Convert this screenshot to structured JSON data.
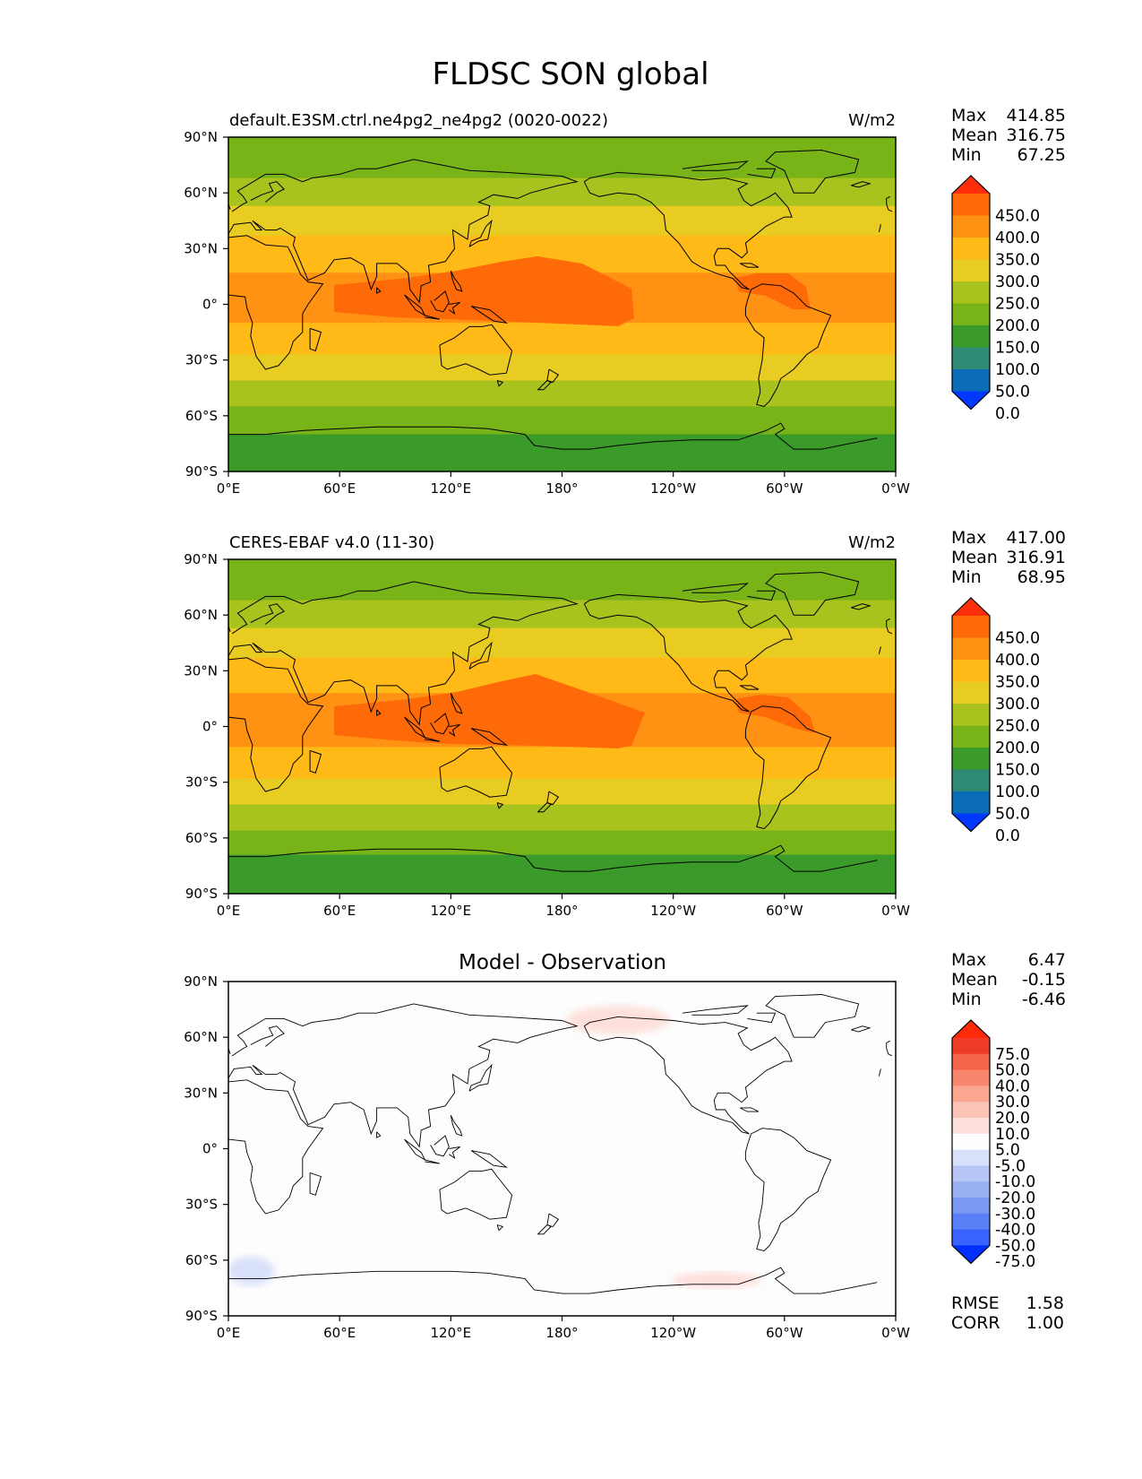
{
  "figure": {
    "title": "FLDSC SON global"
  },
  "colors": {
    "main_levels": [
      "#0038ff",
      "#0a6bb6",
      "#2e8a72",
      "#3a9b2a",
      "#78b418",
      "#a8c21e",
      "#e8cc22",
      "#ffba18",
      "#ff9212",
      "#ff6a08",
      "#ff2e0a"
    ],
    "diff_levels": [
      "#0030ff",
      "#3a62ff",
      "#5a80f8",
      "#7a98f2",
      "#98aff0",
      "#b8c6f5",
      "#d8e0fa",
      "#fdfdfd",
      "#fde0dc",
      "#fcc4b6",
      "#fba690",
      "#f8866c",
      "#f46448",
      "#ef3c28",
      "#ff2a08"
    ],
    "land_outline": "#000000"
  },
  "axes": {
    "lat_ticks": [
      "90°N",
      "60°N",
      "30°N",
      "0°",
      "30°S",
      "60°S",
      "90°S"
    ],
    "lon_ticks": [
      "0°E",
      "60°E",
      "120°E",
      "180°",
      "120°W",
      "60°W",
      "0°W"
    ]
  },
  "chart_data": [
    {
      "type": "heatmap",
      "title_left": "default.E3SM.ctrl.ne4pg2_ne4pg2 (0020-0022)",
      "units": "W/m2",
      "stats": {
        "max_label": "Max",
        "mean_label": "Mean",
        "min_label": "Min",
        "max": "414.85",
        "mean": "316.75",
        "min": "67.25"
      },
      "colorbar_levels": [
        "450.0",
        "400.0",
        "350.0",
        "300.0",
        "250.0",
        "200.0",
        "150.0",
        "100.0",
        "50.0",
        "0.0"
      ],
      "zonal_profile": {
        "lat": [
          90,
          80,
          70,
          60,
          50,
          40,
          30,
          20,
          10,
          0,
          -10,
          -20,
          -30,
          -40,
          -50,
          -60,
          -70,
          -80,
          -90
        ],
        "value": [
          170,
          175,
          195,
          225,
          260,
          290,
          320,
          345,
          360,
          365,
          350,
          325,
          290,
          255,
          220,
          180,
          150,
          120,
          110
        ]
      },
      "warm_pool_value": 400,
      "lon_ticks_deg": [
        0,
        60,
        120,
        180,
        240,
        300,
        360
      ],
      "lat_ticks_deg": [
        90,
        60,
        30,
        0,
        -30,
        -60,
        -90
      ]
    },
    {
      "type": "heatmap",
      "title_left": "CERES-EBAF v4.0 (11-30)",
      "units": "W/m2",
      "stats": {
        "max_label": "Max",
        "mean_label": "Mean",
        "min_label": "Min",
        "max": "417.00",
        "mean": "316.91",
        "min": "68.95"
      },
      "colorbar_levels": [
        "450.0",
        "400.0",
        "350.0",
        "300.0",
        "250.0",
        "200.0",
        "150.0",
        "100.0",
        "50.0",
        "0.0"
      ],
      "zonal_profile": {
        "lat": [
          90,
          80,
          70,
          60,
          50,
          40,
          30,
          20,
          10,
          0,
          -10,
          -20,
          -30,
          -40,
          -50,
          -60,
          -70,
          -80,
          -90
        ],
        "value": [
          170,
          175,
          195,
          225,
          262,
          292,
          322,
          347,
          362,
          366,
          352,
          326,
          292,
          256,
          222,
          182,
          148,
          118,
          110
        ]
      },
      "warm_pool_value": 402,
      "lon_ticks_deg": [
        0,
        60,
        120,
        180,
        240,
        300,
        360
      ],
      "lat_ticks_deg": [
        90,
        60,
        30,
        0,
        -30,
        -60,
        -90
      ]
    },
    {
      "type": "heatmap",
      "title_center": "Model - Observation",
      "stats": {
        "max_label": "Max",
        "mean_label": "Mean",
        "min_label": "Min",
        "max": "6.47",
        "mean": "-0.15",
        "min": "-6.46"
      },
      "colorbar_levels": [
        "75.0",
        "50.0",
        "40.0",
        "30.0",
        "20.0",
        "10.0",
        "5.0",
        "-5.0",
        "-10.0",
        "-20.0",
        "-30.0",
        "-40.0",
        "-50.0",
        "-75.0"
      ],
      "metrics": {
        "rmse_label": "RMSE",
        "rmse": "1.58",
        "corr_label": "CORR",
        "corr": "1.00"
      },
      "lon_ticks_deg": [
        0,
        60,
        120,
        180,
        240,
        300,
        360
      ],
      "lat_ticks_deg": [
        90,
        60,
        30,
        0,
        -30,
        -60,
        -90
      ]
    }
  ]
}
